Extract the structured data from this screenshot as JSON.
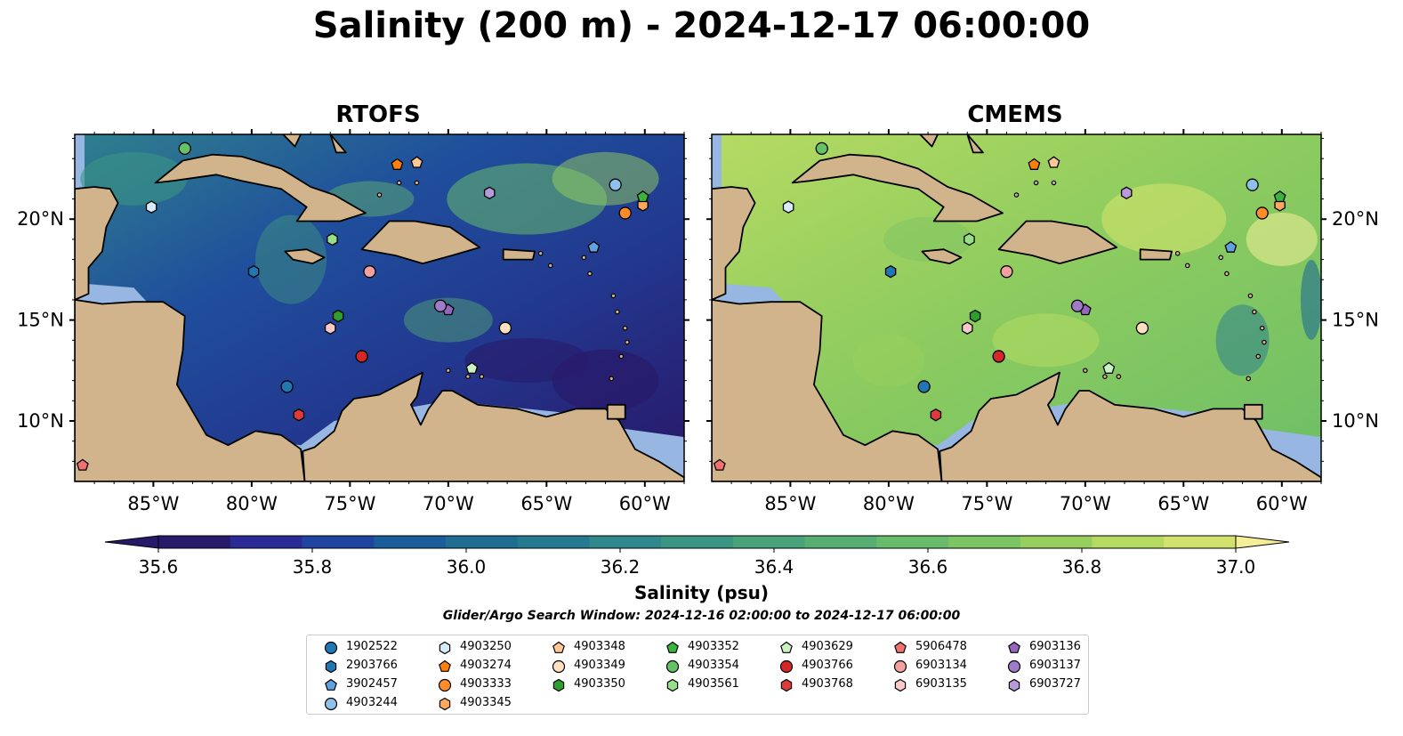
{
  "title": "Salinity (200 m) - 2024-12-17 06:00:00",
  "panels": [
    {
      "title": "RTOFS"
    },
    {
      "title": "CMEMS"
    }
  ],
  "map": {
    "lon_range": [
      -89,
      -58
    ],
    "lat_range": [
      7,
      24.2
    ],
    "x_ticks": [
      {
        "value": -85,
        "label": "85°W"
      },
      {
        "value": -80,
        "label": "80°W"
      },
      {
        "value": -75,
        "label": "75°W"
      },
      {
        "value": -70,
        "label": "70°W"
      },
      {
        "value": -65,
        "label": "65°W"
      },
      {
        "value": -60,
        "label": "60°W"
      }
    ],
    "y_ticks": [
      {
        "value": 10,
        "label": "10°N"
      },
      {
        "value": 15,
        "label": "15°N"
      },
      {
        "value": 20,
        "label": "20°N"
      }
    ],
    "colors": {
      "land": "#d2b48c",
      "shallow": "#97b6e1",
      "deep_low": "#281a6b",
      "coast": "#000000"
    }
  },
  "colorbar": {
    "label": "Salinity (psu)",
    "range": [
      35.6,
      37.0
    ],
    "ticks": [
      "35.6",
      "35.8",
      "36.0",
      "36.2",
      "36.4",
      "36.6",
      "36.8",
      "37.0"
    ],
    "colors": [
      "#281a6b",
      "#2b2b98",
      "#1f45a0",
      "#1b5c9a",
      "#206d94",
      "#257a90",
      "#2f888b",
      "#3b9583",
      "#48a27a",
      "#57ae73",
      "#68bb6b",
      "#7dc462",
      "#97cf5e",
      "#b5da62",
      "#d2e26c",
      "#f4ee97"
    ]
  },
  "search_window": "Glider/Argo Search Window: 2024-12-16 02:00:00 to 2024-12-17 06:00:00",
  "legend": [
    {
      "id": "1902522",
      "color": "#1f77b4",
      "marker": "circle"
    },
    {
      "id": "2903766",
      "color": "#1f77b4",
      "marker": "hexagon"
    },
    {
      "id": "3902457",
      "color": "#5fa2dd",
      "marker": "pentagon"
    },
    {
      "id": "4903244",
      "color": "#8ec1ea",
      "marker": "circle"
    },
    {
      "id": "4903250",
      "color": "#d6ecf8",
      "marker": "hexagon"
    },
    {
      "id": "4903274",
      "color": "#ff7f0e",
      "marker": "pentagon"
    },
    {
      "id": "4903333",
      "color": "#ff8c2a",
      "marker": "circle"
    },
    {
      "id": "4903345",
      "color": "#ffa85a",
      "marker": "hexagon"
    },
    {
      "id": "4903348",
      "color": "#ffc896",
      "marker": "pentagon"
    },
    {
      "id": "4903349",
      "color": "#ffe0c0",
      "marker": "circle"
    },
    {
      "id": "4903350",
      "color": "#2ca02c",
      "marker": "hexagon"
    },
    {
      "id": "4903352",
      "color": "#3cb43c",
      "marker": "pentagon"
    },
    {
      "id": "4903354",
      "color": "#66c266",
      "marker": "circle"
    },
    {
      "id": "4903561",
      "color": "#98df8a",
      "marker": "hexagon"
    },
    {
      "id": "4903629",
      "color": "#ccf2c4",
      "marker": "pentagon"
    },
    {
      "id": "4903766",
      "color": "#d62728",
      "marker": "circle"
    },
    {
      "id": "4903768",
      "color": "#e0393a",
      "marker": "hexagon"
    },
    {
      "id": "5906478",
      "color": "#f0716f",
      "marker": "pentagon"
    },
    {
      "id": "6903134",
      "color": "#f4a0a0",
      "marker": "circle"
    },
    {
      "id": "6903135",
      "color": "#f9c9c9",
      "marker": "hexagon"
    },
    {
      "id": "6903136",
      "color": "#9467bd",
      "marker": "pentagon"
    },
    {
      "id": "6903137",
      "color": "#a07cc8",
      "marker": "circle"
    },
    {
      "id": "6903727",
      "color": "#b79ad8",
      "marker": "hexagon"
    }
  ],
  "floats": [
    {
      "id": "1902522",
      "lon": -78.2,
      "lat": 11.7
    },
    {
      "id": "2903766",
      "lon": -79.9,
      "lat": 17.4
    },
    {
      "id": "3902457",
      "lon": -62.6,
      "lat": 18.6
    },
    {
      "id": "4903244",
      "lon": -61.5,
      "lat": 21.7
    },
    {
      "id": "4903250",
      "lon": -85.1,
      "lat": 20.6
    },
    {
      "id": "4903274",
      "lon": -72.6,
      "lat": 22.7
    },
    {
      "id": "4903333",
      "lon": -61.0,
      "lat": 20.3
    },
    {
      "id": "4903345",
      "lon": -60.1,
      "lat": 20.7
    },
    {
      "id": "4903348",
      "lon": -71.6,
      "lat": 22.8
    },
    {
      "id": "4903349",
      "lon": -67.1,
      "lat": 14.6
    },
    {
      "id": "4903350",
      "lon": -75.6,
      "lat": 15.2
    },
    {
      "id": "4903352",
      "lon": -60.1,
      "lat": 21.1
    },
    {
      "id": "4903354",
      "lon": -83.4,
      "lat": 23.5
    },
    {
      "id": "4903561",
      "lon": -75.9,
      "lat": 19.0
    },
    {
      "id": "4903629",
      "lon": -68.8,
      "lat": 12.6
    },
    {
      "id": "4903766",
      "lon": -74.4,
      "lat": 13.2
    },
    {
      "id": "4903768",
      "lon": -77.6,
      "lat": 10.3
    },
    {
      "id": "5906478",
      "lon": -88.6,
      "lat": 7.8
    },
    {
      "id": "6903134",
      "lon": -74.0,
      "lat": 17.4
    },
    {
      "id": "6903135",
      "lon": -76.0,
      "lat": 14.6
    },
    {
      "id": "6903136",
      "lon": -70.0,
      "lat": 15.5
    },
    {
      "id": "6903137",
      "lon": -70.4,
      "lat": 15.7
    },
    {
      "id": "6903727",
      "lon": -67.9,
      "lat": 21.3
    }
  ]
}
